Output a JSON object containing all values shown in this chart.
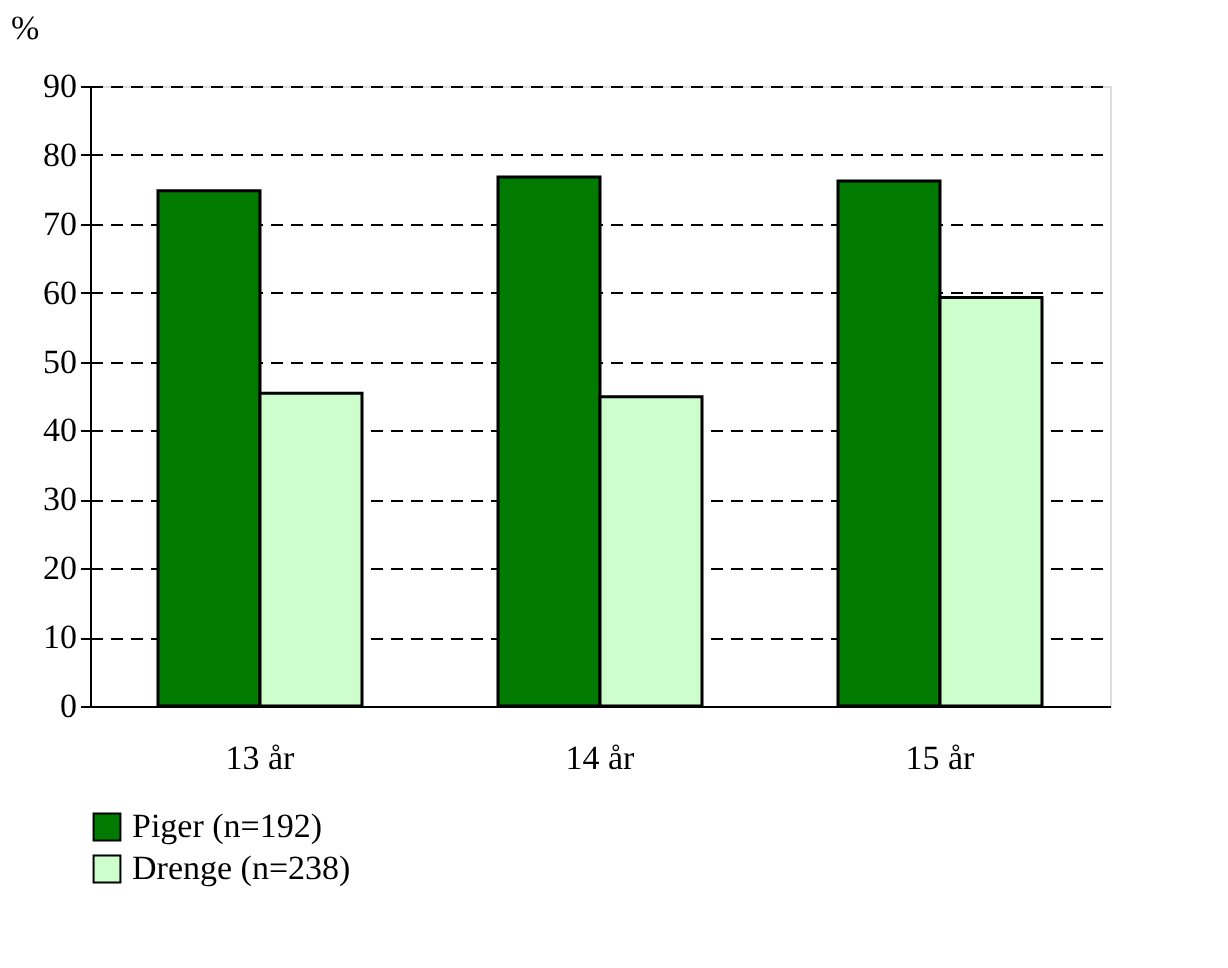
{
  "chart_data": {
    "type": "bar",
    "ylabel": "%",
    "categories": [
      "13 år",
      "14 år",
      "15 år"
    ],
    "series": [
      {
        "name": "Piger (n=192)",
        "color": "#007a00",
        "values": [
          74.8,
          76.8,
          76.2
        ]
      },
      {
        "name": "Drenge (n=238)",
        "color": "#ccffcc",
        "values": [
          45.4,
          44.9,
          59.3
        ]
      }
    ],
    "ylim": [
      0,
      90
    ],
    "yticks": [
      0,
      10,
      20,
      30,
      40,
      50,
      60,
      70,
      80,
      90
    ],
    "grid": "y",
    "legend": "bottom"
  }
}
